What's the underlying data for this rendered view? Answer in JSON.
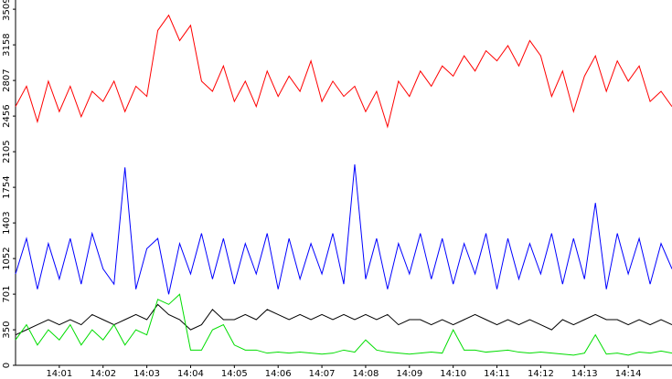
{
  "chart_data": {
    "type": "line",
    "x": [
      0,
      0.25,
      0.5,
      0.75,
      1,
      1.25,
      1.5,
      1.75,
      2,
      2.25,
      2.5,
      2.75,
      3,
      3.25,
      3.5,
      3.75,
      4,
      4.25,
      4.5,
      4.75,
      5,
      5.25,
      5.5,
      5.75,
      6,
      6.25,
      6.5,
      6.75,
      7,
      7.25,
      7.5,
      7.75,
      8,
      8.25,
      8.5,
      8.75,
      9,
      9.25,
      9.5,
      9.75,
      10,
      10.25,
      10.5,
      10.75,
      11,
      11.25,
      11.5,
      11.75,
      12,
      12.25,
      12.5,
      12.75,
      13,
      13.25,
      13.5,
      13.75,
      14,
      14.25,
      14.5,
      14.75,
      15
    ],
    "xlim": [
      0,
      15
    ],
    "xticks": [
      {
        "value": 1,
        "label": "14:01"
      },
      {
        "value": 2,
        "label": "14:02"
      },
      {
        "value": 3,
        "label": "14:03"
      },
      {
        "value": 4,
        "label": "14:04"
      },
      {
        "value": 5,
        "label": "14:05"
      },
      {
        "value": 6,
        "label": "14:06"
      },
      {
        "value": 7,
        "label": "14:07"
      },
      {
        "value": 8,
        "label": "14:08"
      },
      {
        "value": 9,
        "label": "14:09"
      },
      {
        "value": 10,
        "label": "14:10"
      },
      {
        "value": 11,
        "label": "14:11"
      },
      {
        "value": 12,
        "label": "14:12"
      },
      {
        "value": 13,
        "label": "14:13"
      },
      {
        "value": 14,
        "label": "14:14"
      }
    ],
    "ylim": [
      0,
      3600
    ],
    "yticks": [
      0,
      350,
      701,
      1052,
      1403,
      1754,
      2105,
      2456,
      2807,
      3158,
      3509
    ],
    "series": [
      {
        "color": "#ff0000",
        "values": [
          2550,
          2750,
          2400,
          2800,
          2500,
          2750,
          2450,
          2700,
          2600,
          2800,
          2500,
          2750,
          2650,
          3300,
          3450,
          3200,
          3350,
          2800,
          2700,
          2950,
          2600,
          2800,
          2550,
          2900,
          2650,
          2850,
          2700,
          3000,
          2600,
          2800,
          2650,
          2750,
          2500,
          2700,
          2350,
          2800,
          2650,
          2900,
          2750,
          2950,
          2850,
          3050,
          2900,
          3100,
          3000,
          3150,
          2950,
          3200,
          3050,
          2650,
          2900,
          2500,
          2850,
          3050,
          2700,
          3000,
          2800,
          2950,
          2600,
          2700,
          2550
        ]
      },
      {
        "color": "#0000ff",
        "values": [
          900,
          1250,
          750,
          1200,
          850,
          1250,
          800,
          1300,
          950,
          800,
          1950,
          750,
          1150,
          1250,
          700,
          1200,
          900,
          1300,
          850,
          1250,
          800,
          1200,
          900,
          1300,
          750,
          1250,
          850,
          1200,
          900,
          1300,
          800,
          1980,
          850,
          1250,
          750,
          1200,
          900,
          1300,
          850,
          1250,
          800,
          1200,
          900,
          1300,
          750,
          1250,
          850,
          1200,
          900,
          1300,
          800,
          1250,
          850,
          1600,
          750,
          1300,
          900,
          1250,
          800,
          1200,
          950
        ]
      },
      {
        "color": "#000000",
        "values": [
          300,
          350,
          400,
          450,
          400,
          450,
          400,
          500,
          450,
          400,
          450,
          500,
          450,
          600,
          500,
          450,
          350,
          400,
          550,
          450,
          450,
          500,
          450,
          550,
          500,
          450,
          500,
          450,
          500,
          450,
          500,
          450,
          500,
          450,
          500,
          400,
          450,
          450,
          400,
          450,
          400,
          450,
          500,
          450,
          400,
          450,
          400,
          450,
          400,
          350,
          450,
          400,
          450,
          500,
          450,
          450,
          400,
          450,
          400,
          450,
          400
        ]
      },
      {
        "color": "#00dd00",
        "values": [
          250,
          400,
          200,
          350,
          250,
          400,
          200,
          350,
          250,
          400,
          200,
          350,
          300,
          650,
          600,
          700,
          150,
          150,
          350,
          400,
          200,
          150,
          150,
          120,
          130,
          120,
          130,
          120,
          110,
          120,
          150,
          130,
          250,
          150,
          130,
          120,
          110,
          120,
          130,
          120,
          350,
          150,
          150,
          130,
          140,
          150,
          130,
          120,
          130,
          120,
          110,
          100,
          120,
          300,
          110,
          120,
          100,
          130,
          120,
          140,
          120
        ]
      }
    ]
  }
}
